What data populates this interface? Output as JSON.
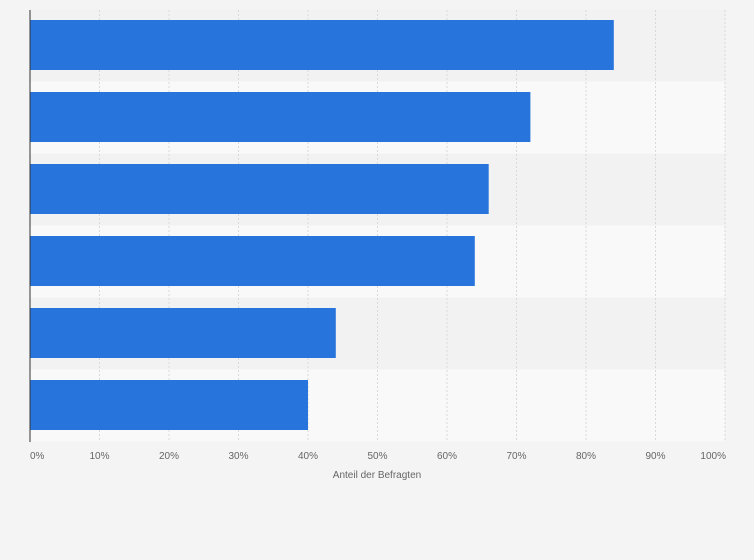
{
  "chart_data": {
    "type": "bar",
    "orientation": "horizontal",
    "title": "",
    "categories": [
      "",
      "",
      "",
      "",
      "",
      ""
    ],
    "values": [
      84,
      72,
      66,
      64,
      44,
      40
    ],
    "xlabel": "Anteil der Befragten",
    "ylabel": "",
    "xlim": [
      0,
      100
    ],
    "x_ticks": [
      "0%",
      "10%",
      "20%",
      "30%",
      "40%",
      "50%",
      "60%",
      "70%",
      "80%",
      "90%",
      "100%"
    ],
    "grid": true,
    "legend": "none",
    "colors": {
      "bar": "#2775dc",
      "background": "#f4f4f4",
      "band_light": "#f9f9f9",
      "band_dark": "#f2f2f2",
      "grid": "#d9d9d9",
      "axis": "#333333",
      "text": "#666666"
    }
  }
}
